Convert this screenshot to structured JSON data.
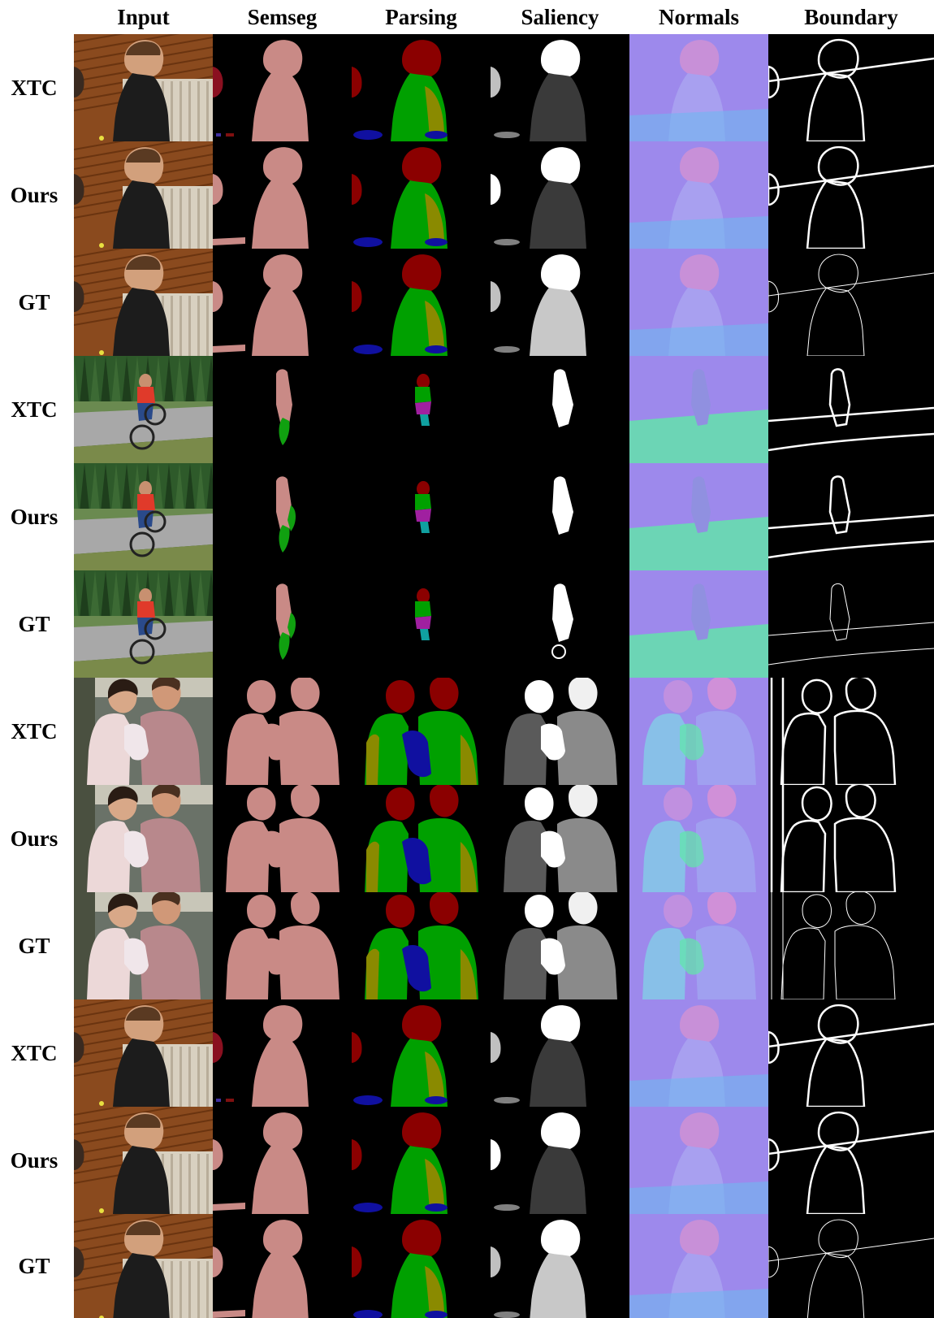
{
  "figure": {
    "columns": [
      "Input",
      "Semseg",
      "Parsing",
      "Saliency",
      "Normals",
      "Boundary"
    ],
    "rows": [
      {
        "label": "XTC",
        "scene": "man"
      },
      {
        "label": "Ours",
        "scene": "man"
      },
      {
        "label": "GT",
        "scene": "man"
      },
      {
        "label": "XTC",
        "scene": "bike"
      },
      {
        "label": "Ours",
        "scene": "bike"
      },
      {
        "label": "GT",
        "scene": "bike"
      },
      {
        "label": "XTC",
        "scene": "family"
      },
      {
        "label": "Ours",
        "scene": "family"
      },
      {
        "label": "GT",
        "scene": "family"
      },
      {
        "label": "XTC",
        "scene": "man"
      },
      {
        "label": "Ours",
        "scene": "man"
      },
      {
        "label": "GT",
        "scene": "man"
      }
    ]
  },
  "colors": {
    "semseg_person": "#c98a86",
    "parsing_head": "#8b0000",
    "parsing_torso": "#00a000",
    "parsing_arm": "#8a8a00",
    "parsing_leg": "#1010a0",
    "normals_base": "#8a8cf0",
    "normals_green": "#60e8a8",
    "normals_pink": "#d880e0"
  }
}
